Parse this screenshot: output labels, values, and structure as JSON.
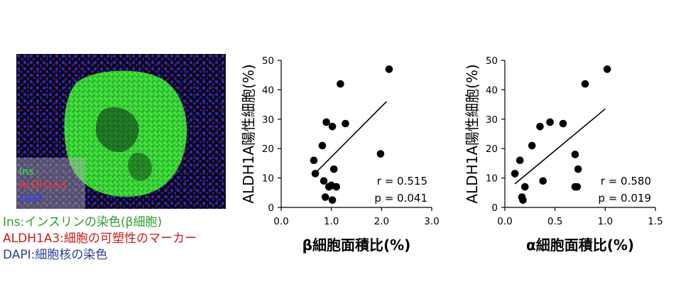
{
  "micrograph": {
    "overlay_labels": [
      {
        "text": "Ins",
        "color": "#33ee33"
      },
      {
        "text": "ALDH1A3",
        "color": "#ff3030"
      },
      {
        "text": "DAPI",
        "color": "#3340ff"
      }
    ]
  },
  "legend": [
    {
      "text": "Ins:インスリンの染色(β細胞)",
      "color": "#2e9e2e"
    },
    {
      "text": "ALDH1A3:細胞の可塑性のマーカー",
      "color": "#cc1a1a"
    },
    {
      "text": "DAPI:細胞核の染色",
      "color": "#2a3f9c"
    }
  ],
  "chart_data": [
    {
      "type": "scatter",
      "xlabel": "β細胞面積比(%)",
      "ylabel": "ALDH1A陽性細胞(%)",
      "xlim": [
        0,
        3
      ],
      "ylim": [
        0,
        50
      ],
      "xticks": [
        "0.0",
        "1.0",
        "2.0",
        "3.0"
      ],
      "yticks": [
        "0",
        "10",
        "20",
        "30",
        "40",
        "50"
      ],
      "points": [
        [
          0.65,
          16
        ],
        [
          0.68,
          11.5
        ],
        [
          0.82,
          21
        ],
        [
          0.85,
          9
        ],
        [
          0.88,
          3.5
        ],
        [
          0.9,
          29
        ],
        [
          0.95,
          7
        ],
        [
          1.0,
          7.5
        ],
        [
          1.02,
          27.5
        ],
        [
          1.02,
          2.5
        ],
        [
          1.05,
          13
        ],
        [
          1.1,
          7
        ],
        [
          1.18,
          42
        ],
        [
          1.28,
          28.5
        ],
        [
          1.98,
          18.2
        ],
        [
          2.15,
          47
        ]
      ],
      "trendline": [
        [
          0.7,
          12
        ],
        [
          2.1,
          36
        ]
      ],
      "stats": [
        "r = 0.515",
        "p = 0.041"
      ]
    },
    {
      "type": "scatter",
      "xlabel": "α細胞面積比(%)",
      "ylabel": "ALDH1A陽性細胞(%)",
      "xlim": [
        0,
        1.5
      ],
      "ylim": [
        0,
        50
      ],
      "xticks": [
        "0.0",
        "0.5",
        "1.0",
        "1.5"
      ],
      "yticks": [
        "0",
        "10",
        "20",
        "30",
        "40",
        "50"
      ],
      "points": [
        [
          0.1,
          11.5
        ],
        [
          0.15,
          16
        ],
        [
          0.17,
          3.5
        ],
        [
          0.18,
          2.5
        ],
        [
          0.2,
          7
        ],
        [
          0.27,
          21
        ],
        [
          0.35,
          27.5
        ],
        [
          0.38,
          9
        ],
        [
          0.45,
          29
        ],
        [
          0.58,
          28.5
        ],
        [
          0.7,
          7
        ],
        [
          0.72,
          7
        ],
        [
          0.7,
          18
        ],
        [
          0.73,
          13
        ],
        [
          0.8,
          42
        ],
        [
          1.02,
          47
        ]
      ],
      "trendline": [
        [
          0.1,
          8
        ],
        [
          1.0,
          33.5
        ]
      ],
      "stats": [
        "r = 0.580",
        "p = 0.019"
      ]
    }
  ]
}
